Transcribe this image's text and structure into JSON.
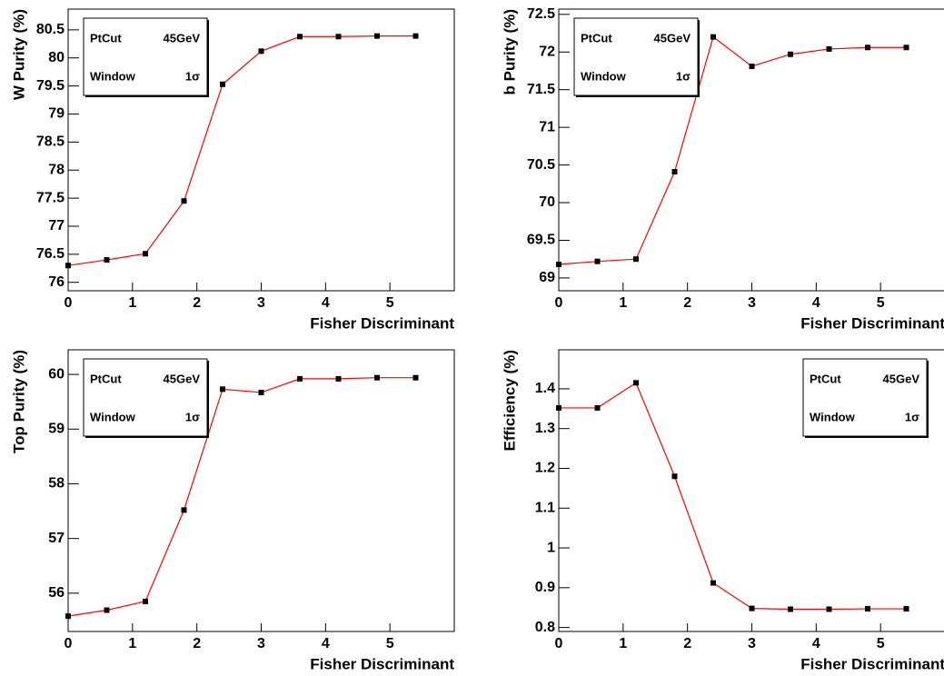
{
  "chart_data": [
    {
      "type": "line",
      "xlabel": "Fisher Discriminant",
      "ylabel": "W Purity (%)",
      "x": [
        0,
        0.6,
        1.2,
        1.8,
        2.4,
        3.0,
        3.6,
        4.2,
        4.8,
        5.4
      ],
      "series": [
        {
          "color": "#ff0000",
          "values": [
            76.3,
            76.4,
            76.51,
            77.45,
            79.53,
            80.12,
            80.38,
            80.38,
            80.39,
            80.39
          ]
        }
      ],
      "xlim": [
        0,
        6
      ],
      "xticks": [
        0,
        1,
        2,
        3,
        4,
        5
      ],
      "ylim": [
        75.85,
        80.87
      ],
      "yticks": [
        76,
        76.5,
        77,
        77.5,
        78,
        78.5,
        79,
        79.5,
        80,
        80.5
      ],
      "legend_position": "upper left",
      "annotations": [
        {
          "label": "PtCut",
          "value": "45GeV"
        },
        {
          "label": "Window",
          "value": "1σ"
        }
      ]
    },
    {
      "type": "line",
      "xlabel": "Fisher Discriminant",
      "ylabel": "b Purity (%)",
      "x": [
        0,
        0.6,
        1.2,
        1.8,
        2.4,
        3.0,
        3.6,
        4.2,
        4.8,
        5.4
      ],
      "series": [
        {
          "color": "#ff0000",
          "values": [
            69.18,
            69.22,
            69.25,
            70.41,
            72.2,
            71.81,
            71.97,
            72.04,
            72.06,
            72.06
          ]
        }
      ],
      "xlim": [
        0,
        6
      ],
      "xticks": [
        0,
        1,
        2,
        3,
        4,
        5
      ],
      "ylim": [
        68.83,
        72.57
      ],
      "yticks": [
        69,
        69.5,
        70,
        70.5,
        71,
        71.5,
        72,
        72.5
      ],
      "legend_position": "upper left",
      "annotations": [
        {
          "label": "PtCut",
          "value": "45GeV"
        },
        {
          "label": "Window",
          "value": "1σ"
        }
      ]
    },
    {
      "type": "line",
      "xlabel": "Fisher Discriminant",
      "ylabel": "Top Purity (%)",
      "x": [
        0,
        0.6,
        1.2,
        1.8,
        2.4,
        3.0,
        3.6,
        4.2,
        4.8,
        5.4
      ],
      "series": [
        {
          "color": "#ff0000",
          "values": [
            55.58,
            55.69,
            55.85,
            57.52,
            59.73,
            59.67,
            59.92,
            59.92,
            59.94,
            59.94
          ]
        }
      ],
      "xlim": [
        0,
        6
      ],
      "xticks": [
        0,
        1,
        2,
        3,
        4,
        5
      ],
      "ylim": [
        55.3,
        60.45
      ],
      "yticks": [
        56,
        57,
        58,
        59,
        60
      ],
      "legend_position": "upper left",
      "annotations": [
        {
          "label": "PtCut",
          "value": "45GeV"
        },
        {
          "label": "Window",
          "value": "1σ"
        }
      ]
    },
    {
      "type": "line",
      "xlabel": "Fisher Discriminant",
      "ylabel": "Efficiency (%)",
      "x": [
        0,
        0.6,
        1.2,
        1.8,
        2.4,
        3.0,
        3.6,
        4.2,
        4.8,
        5.4
      ],
      "series": [
        {
          "color": "#ff0000",
          "values": [
            1.352,
            1.352,
            1.415,
            1.18,
            0.912,
            0.848,
            0.846,
            0.846,
            0.847,
            0.847
          ]
        }
      ],
      "xlim": [
        0,
        6
      ],
      "xticks": [
        0,
        1,
        2,
        3,
        4,
        5
      ],
      "ylim": [
        0.79,
        1.498
      ],
      "yticks": [
        0.8,
        0.9,
        1,
        1.1,
        1.2,
        1.3,
        1.4
      ],
      "legend_position": "upper right",
      "annotations": [
        {
          "label": "PtCut",
          "value": "45GeV"
        },
        {
          "label": "Window",
          "value": "1σ"
        }
      ]
    }
  ]
}
